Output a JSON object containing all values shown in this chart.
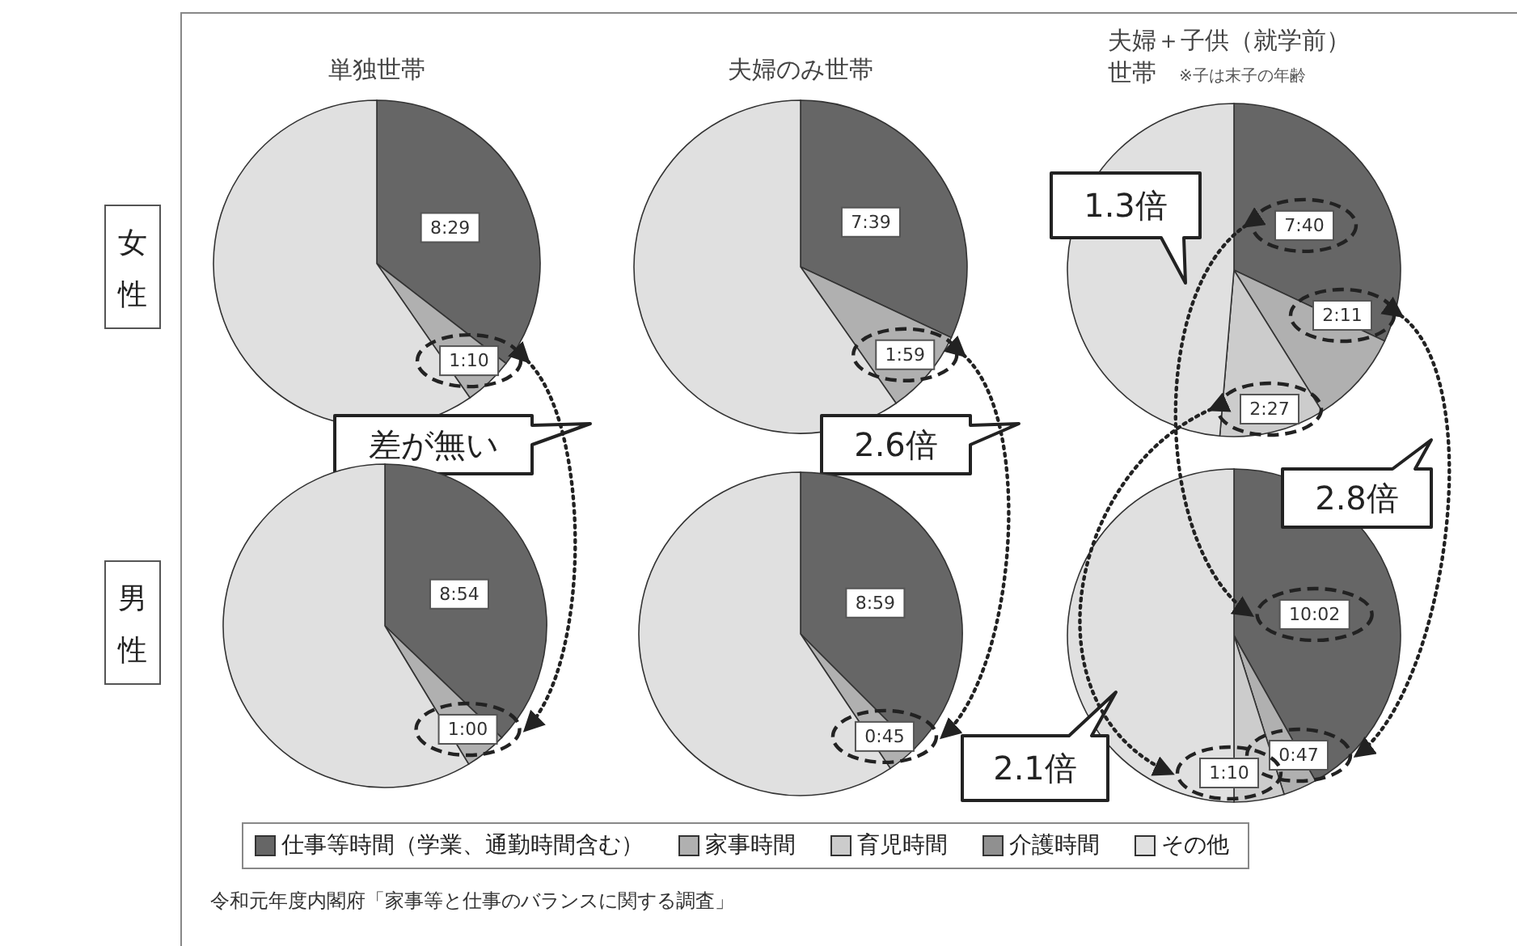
{
  "chart_data": [
    {
      "type": "pie",
      "title": "単独世帯",
      "categories": [
        null,
        null,
        null,
        null,
        null
      ],
      "values": [
        509,
        70,
        null,
        null,
        856
      ],
      "colors": [
        "#666666",
        "#b0b0b0",
        null,
        null,
        "#e0e0e0"
      ],
      "value_labels": [
        "8:29",
        "1:10",
        null,
        null,
        null
      ],
      "annotations": [
        "女性",
        "差が無い"
      ]
    },
    {
      "type": "pie",
      "title": "夫婦のみ世帯",
      "categories": [
        null,
        null,
        null,
        null,
        null
      ],
      "values": [
        459,
        119,
        null,
        null,
        857
      ],
      "colors": [
        "#666666",
        "#b0b0b0",
        null,
        null,
        "#e0e0e0"
      ],
      "value_labels": [
        "7:39",
        "1:59",
        null,
        null,
        null
      ],
      "annotations": [
        "2.6倍"
      ]
    },
    {
      "type": "pie",
      "title": "夫婦＋子供（就学前）世帯",
      "subtitle": "※子は末子の年齢",
      "categories": [
        null,
        null,
        null,
        null,
        null
      ],
      "values": [
        460,
        131,
        147,
        null,
        699
      ],
      "colors": [
        "#666666",
        "#b0b0b0",
        "#cccccc",
        null,
        "#e0e0e0"
      ],
      "value_labels": [
        "7:40",
        "2:11",
        "2:27",
        null,
        null
      ],
      "annotations": [
        "1.3倍"
      ]
    },
    {
      "type": "pie",
      "categories": [
        null,
        null,
        null,
        null,
        null
      ],
      "values": [
        534,
        60,
        null,
        null,
        843
      ],
      "colors": [
        "#666666",
        "#b0b0b0",
        null,
        null,
        "#e0e0e0"
      ],
      "value_labels": [
        "8:54",
        "1:00",
        null,
        null,
        null
      ],
      "annotations": [
        "男性"
      ]
    },
    {
      "type": "pie",
      "categories": [
        null,
        null,
        null,
        null,
        null
      ],
      "values": [
        539,
        45,
        null,
        null,
        853
      ],
      "colors": [
        "#666666",
        "#b0b0b0",
        null,
        null,
        "#e0e0e0"
      ],
      "value_labels": [
        "8:59",
        "0:45",
        null,
        null,
        null
      ]
    },
    {
      "type": "pie",
      "categories": [
        "仕事等時間（学業、通勤時間含む）",
        "家事時間",
        "育児時間",
        "介護時間",
        "その他"
      ],
      "values": [
        602,
        47,
        70,
        null,
        719
      ],
      "colors": [
        "#666666",
        "#b0b0b0",
        "#cccccc",
        "#909090",
        "#e0e0e0"
      ],
      "value_labels": [
        "10:02",
        "0:47",
        "1:10",
        null,
        null
      ],
      "annotations": [
        "2.8倍",
        "2.1倍",
        "令和元年度内閣府「家事等と仕事のバランスに関する調査」"
      ],
      "legend": "bottom"
    }
  ]
}
